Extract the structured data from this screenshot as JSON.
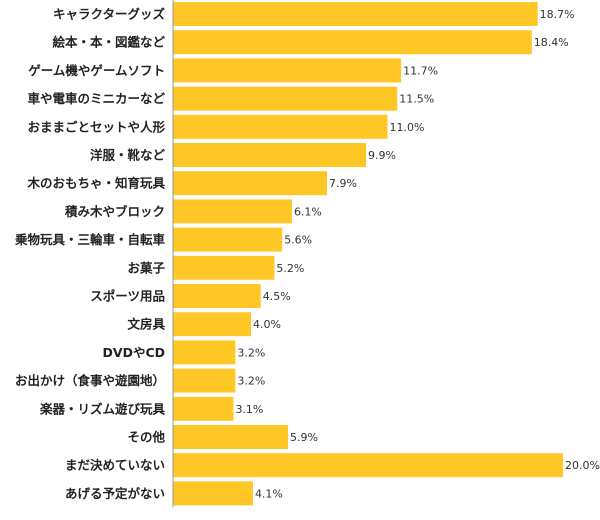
{
  "chart_data": {
    "type": "bar",
    "orientation": "horizontal",
    "categories": [
      "キャラクターグッズ",
      "絵本・本・図鑑など",
      "ゲーム機やゲームソフト",
      "車や電車のミニカーなど",
      "おままごとセットや人形",
      "洋服・靴など",
      "木のおもちゃ・知育玩具",
      "積み木やブロック",
      "乗物玩具・三輪車・自転車",
      "お菓子",
      "スポーツ用品",
      "文房具",
      "DVDやCD",
      "お出かけ（食事や遊園地）",
      "楽器・リズム遊び玩具",
      "その他",
      "まだ決めていない",
      "あげる予定がない"
    ],
    "values": [
      18.7,
      18.4,
      11.7,
      11.5,
      11.0,
      9.9,
      7.9,
      6.1,
      5.6,
      5.2,
      4.5,
      4.0,
      3.2,
      3.2,
      3.1,
      5.9,
      20.0,
      4.1
    ],
    "value_labels": [
      "18.7%",
      "18.4%",
      "11.7%",
      "11.5%",
      "11.0%",
      "9.9%",
      "7.9%",
      "6.1%",
      "5.6%",
      "5.2%",
      "4.5%",
      "4.0%",
      "3.2%",
      "3.2%",
      "3.1%",
      "5.9%",
      "20.0%",
      "4.1%"
    ],
    "xlim": [
      0,
      20
    ],
    "bar_color": "#FFC726",
    "axis_color": "#999999",
    "grid": false,
    "legend": "none"
  }
}
